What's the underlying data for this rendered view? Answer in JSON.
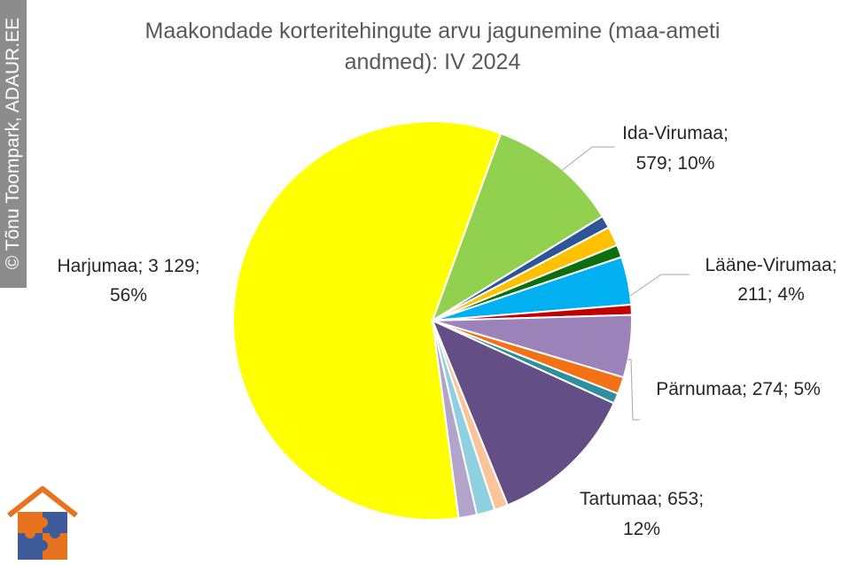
{
  "watermark": "© Tõnu Toompark, ADAUR.EE",
  "chart_data": {
    "type": "pie",
    "title_lines": [
      "Maakondade korteritehingute arvu jagunemine (maa-ameti",
      "andmed): IV 2024"
    ],
    "slices": [
      {
        "name": "Harjumaa",
        "value": 3129,
        "percent": 56,
        "color": "#ffff00"
      },
      {
        "name": "Ida-Virumaa",
        "value": 579,
        "percent": 10,
        "color": "#92d050"
      },
      {
        "name": "",
        "value": 55,
        "color": "#2e5597"
      },
      {
        "name": "",
        "value": 85,
        "color": "#ffc000"
      },
      {
        "name": "",
        "value": 55,
        "color": "#0d6e0d"
      },
      {
        "name": "Lääne-Virumaa",
        "value": 211,
        "percent": 4,
        "color": "#00b0f0"
      },
      {
        "name": "",
        "value": 45,
        "color": "#c00000"
      },
      {
        "name": "Pärnumaa",
        "value": 274,
        "percent": 5,
        "color": "#9b82b9"
      },
      {
        "name": "",
        "value": 75,
        "color": "#f47216"
      },
      {
        "name": "",
        "value": 45,
        "color": "#2d8fa0"
      },
      {
        "name": "Tartumaa",
        "value": 653,
        "percent": 12,
        "color": "#644e86"
      },
      {
        "name": "",
        "value": 60,
        "color": "#fbc49a"
      },
      {
        "name": "",
        "value": 80,
        "color": "#8fd0e0"
      },
      {
        "name": "",
        "value": 80,
        "color": "#b3a4cc"
      }
    ],
    "labels": [
      {
        "lines": [
          "Harjumaa; 3 129;",
          "56%"
        ]
      },
      {
        "lines": [
          "Ida-Virumaa;",
          "579; 10%"
        ]
      },
      {
        "lines": [
          "Lääne-Virumaa;",
          "211; 4%"
        ]
      },
      {
        "lines": [
          "Pärnumaa; 274; 5%"
        ]
      },
      {
        "lines": [
          "Tartumaa; 653;",
          "12%"
        ]
      }
    ]
  }
}
